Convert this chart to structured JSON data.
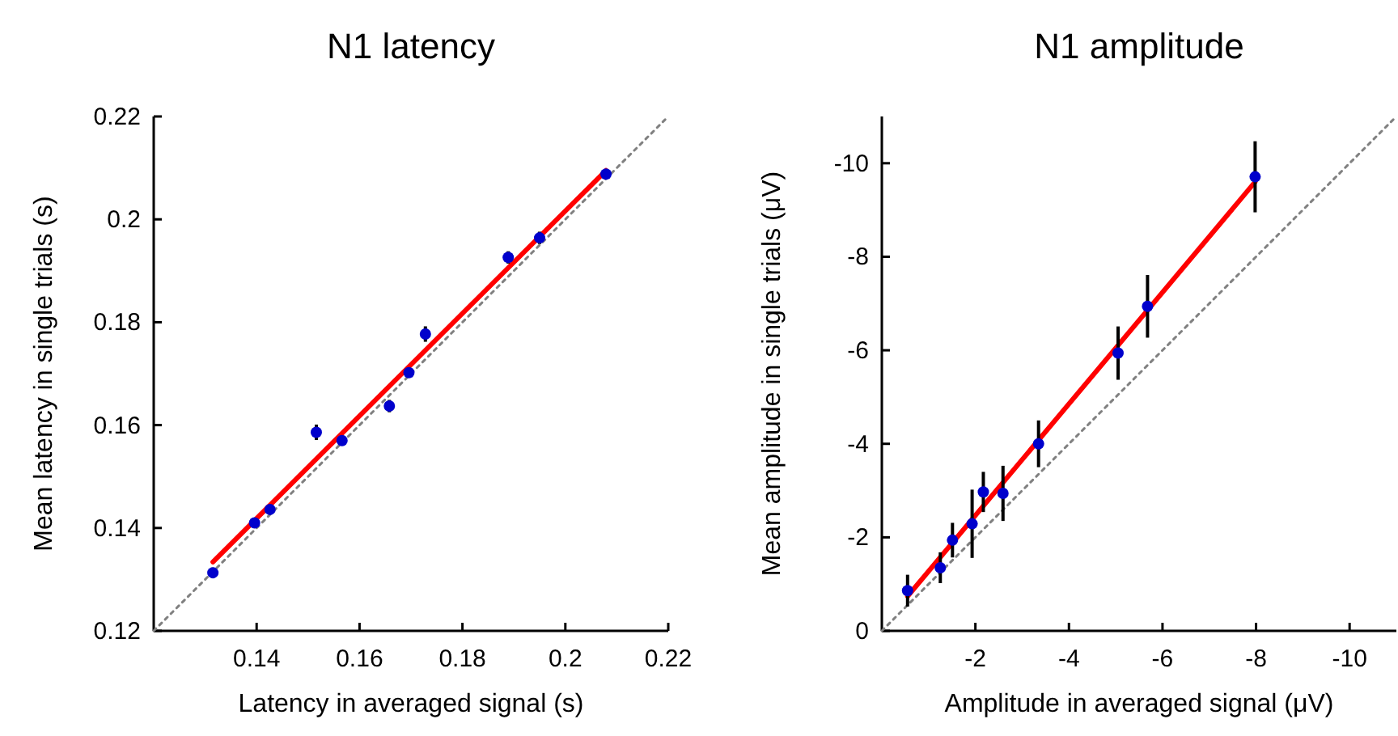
{
  "chart_data": [
    {
      "type": "scatter",
      "title": "N1 latency",
      "xlabel": "Latency in averaged signal (s)",
      "ylabel": "Mean latency in single trials (s)",
      "xlim": [
        0.12,
        0.22
      ],
      "ylim": [
        0.12,
        0.22
      ],
      "xticks": [
        0.14,
        0.16,
        0.18,
        0.2,
        0.22
      ],
      "yticks": [
        0.12,
        0.14,
        0.16,
        0.18,
        0.2,
        0.22
      ],
      "grid": false,
      "series": [
        {
          "type": "line",
          "color": "#808080",
          "line_style": "dotted",
          "x": [
            0.12,
            0.22
          ],
          "values": [
            0.12,
            0.22
          ]
        },
        {
          "type": "line",
          "color": "#ff0000",
          "line_style": "solid",
          "x": [
            0.1315,
            0.2079
          ],
          "values": [
            0.1334,
            0.2095
          ]
        },
        {
          "marker": "circle",
          "color": "#0000cc",
          "x": [
            0.1315,
            0.1396,
            0.1426,
            0.1516,
            0.1566,
            0.1658,
            0.1696,
            0.1728,
            0.1889,
            0.195,
            0.2079
          ],
          "values": [
            0.1313,
            0.141,
            0.1436,
            0.1586,
            0.157,
            0.1637,
            0.1702,
            0.1777,
            0.1926,
            0.1964,
            0.2088
          ],
          "errors": [
            0.001,
            0.001,
            0.0008,
            0.0015,
            0.0008,
            0.0012,
            0.0008,
            0.0015,
            0.0012,
            0.0012,
            0.0008
          ]
        }
      ]
    },
    {
      "type": "scatter",
      "title": "N1 amplitude",
      "xlabel": "Amplitude in averaged signal (μV)",
      "ylabel": "Mean amplitude in single trials (μV)",
      "xlim": [
        0,
        -11
      ],
      "ylim": [
        0,
        -11
      ],
      "xticks": [
        -2,
        -4,
        -6,
        -8,
        -10
      ],
      "yticks": [
        0,
        -2,
        -4,
        -6,
        -8,
        -10
      ],
      "grid": false,
      "series": [
        {
          "type": "line",
          "color": "#808080",
          "line_style": "dotted",
          "x": [
            0,
            -11
          ],
          "values": [
            0,
            -11
          ]
        },
        {
          "type": "line",
          "color": "#ff0000",
          "line_style": "solid",
          "x": [
            -0.55,
            -7.98
          ],
          "values": [
            -0.74,
            -9.6
          ]
        },
        {
          "marker": "circle",
          "color": "#0000cc",
          "x": [
            -0.55,
            -1.25,
            -1.51,
            -1.93,
            -2.17,
            -2.59,
            -3.35,
            -5.05,
            -5.68,
            -7.98
          ],
          "values": [
            -0.86,
            -1.35,
            -1.94,
            -2.29,
            -2.97,
            -2.94,
            -4.0,
            -5.94,
            -6.94,
            -9.71
          ],
          "errors": [
            0.34,
            0.33,
            0.37,
            0.73,
            0.43,
            0.59,
            0.5,
            0.57,
            0.67,
            0.76
          ]
        }
      ]
    }
  ]
}
